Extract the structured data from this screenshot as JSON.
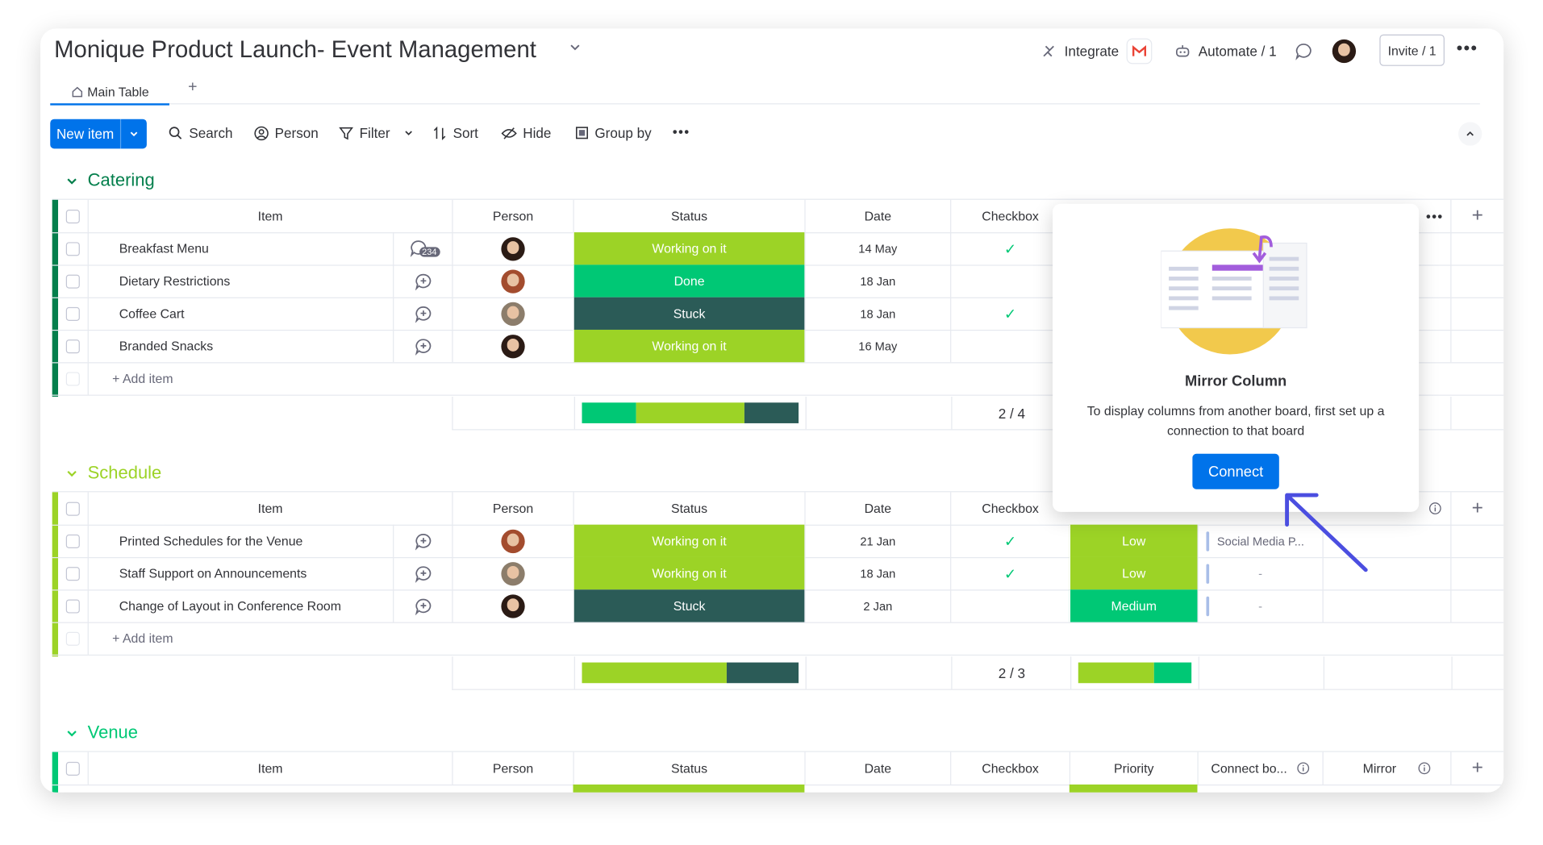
{
  "board": {
    "title": "Monique Product Launch- Event Management",
    "integrate_label": "Integrate",
    "automate_label": "Automate / 1",
    "invite_label": "Invite / 1"
  },
  "tabs": {
    "main_table": "Main Table",
    "add": "+"
  },
  "toolbar": {
    "new_item": "New item",
    "search": "Search",
    "person": "Person",
    "filter": "Filter",
    "sort": "Sort",
    "hide": "Hide",
    "group_by": "Group by"
  },
  "columns": {
    "item": "Item",
    "person": "Person",
    "status": "Status",
    "date": "Date",
    "checkbox": "Checkbox",
    "priority": "Priority",
    "connect": "Connect bo...",
    "mirror": "Mirror"
  },
  "add_item": "+ Add item",
  "colors": {
    "catering": "#037f4c",
    "schedule": "#9cd326",
    "venue": "#00c875",
    "working_on_it": "#9cd326",
    "done": "#00c875",
    "stuck": "#225091",
    "low": "#9cd326",
    "medium": "#00c875",
    "accent": "#0073ea"
  },
  "groups": {
    "catering": {
      "title": "Catering",
      "rows": [
        {
          "name": "Breakfast Menu",
          "updates": "234",
          "status": "Working on it",
          "date": "14 May",
          "checked": "✓"
        },
        {
          "name": "Dietary Restrictions",
          "status": "Done",
          "date": "18 Jan",
          "checked": ""
        },
        {
          "name": "Coffee Cart",
          "status": "Stuck",
          "date": "18 Jan",
          "checked": "✓"
        },
        {
          "name": "Branded Snacks",
          "status": "Working on it",
          "date": "16 May",
          "checked": ""
        }
      ],
      "checkbox_summary": "2 / 4",
      "status_summary": {
        "done": 0.25,
        "working_on_it": 0.5,
        "stuck": 0.25
      }
    },
    "schedule": {
      "title": "Schedule",
      "rows": [
        {
          "name": "Printed Schedules for the Venue",
          "status": "Working on it",
          "date": "21 Jan",
          "checked": "✓",
          "priority": "Low",
          "connect": "Social Media P..."
        },
        {
          "name": "Staff Support on Announcements",
          "status": "Working on it",
          "date": "18 Jan",
          "checked": "✓",
          "priority": "Low",
          "connect": "-"
        },
        {
          "name": "Change of Layout in Conference Room",
          "status": "Stuck",
          "date": "2 Jan",
          "checked": "",
          "priority": "Medium",
          "connect": "-"
        }
      ],
      "checkbox_summary": "2 / 3",
      "status_summary": {
        "working_on_it": 0.67,
        "stuck": 0.33
      },
      "priority_summary": {
        "low": 0.67,
        "medium": 0.33
      }
    },
    "venue": {
      "title": "Venue"
    }
  },
  "popup": {
    "title": "Mirror Column",
    "description": "To display columns from another board, first set up a connection to that board",
    "button": "Connect"
  }
}
